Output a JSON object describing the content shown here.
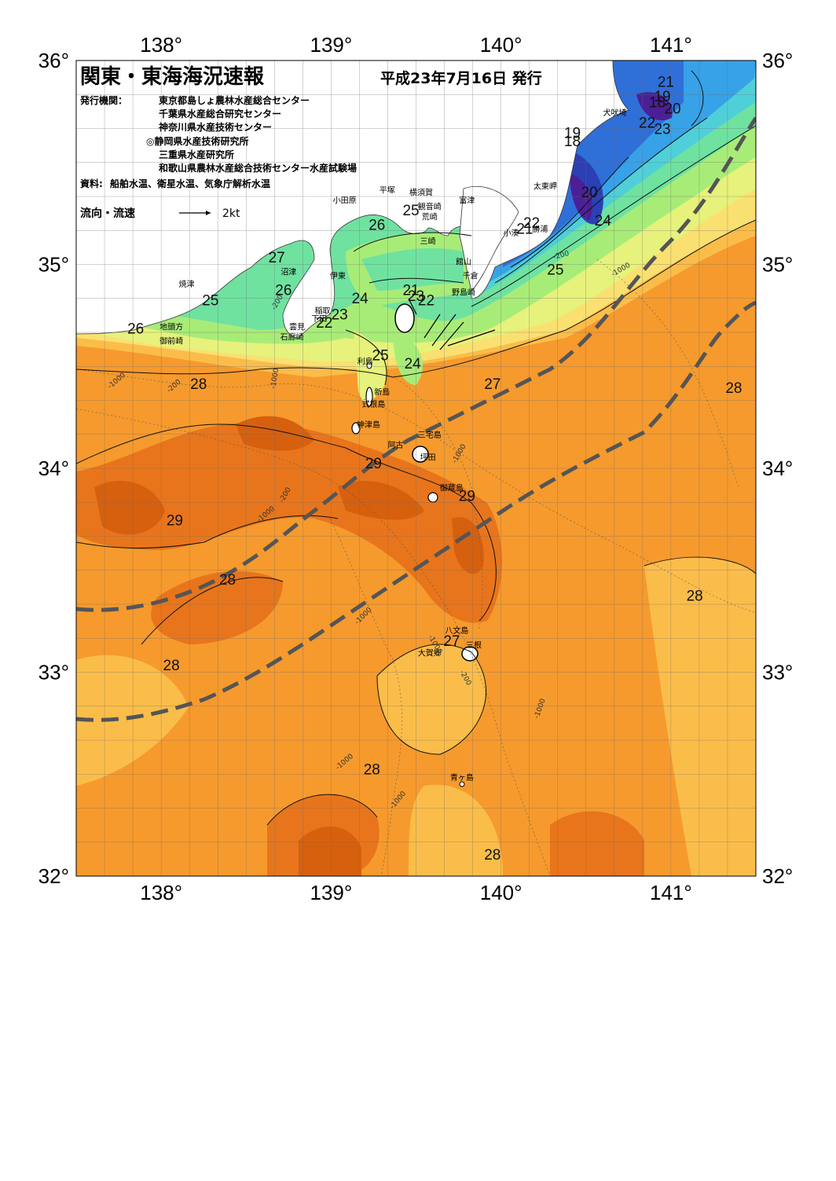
{
  "title": "関東・東海海況速報",
  "issue_date": "平成23年7月16日 発行",
  "publisher_label": "発行機関：",
  "publishers": [
    "東京都島しょ農林水産総合センター",
    "千葉県水産総合研究センター",
    "神奈川県水産技術センター",
    "◎静岡県水産技術研究所",
    "三重県水産研究所",
    "和歌山県農林水産総合技術センター水産試験場"
  ],
  "source_label": "資料:",
  "source_text": "船舶水温、衛星水温、気象庁解析水温",
  "current_legend": {
    "label": "流向・流速",
    "speed": "2kt"
  },
  "axes": {
    "top_lon": [
      "138°",
      "139°",
      "140°",
      "141°"
    ],
    "bottom_lon": [
      "138°",
      "139°",
      "140°",
      "141°"
    ],
    "left_lat": [
      "36°",
      "35°",
      "34°",
      "33°",
      "32°"
    ],
    "right_lat": [
      "36°",
      "35°",
      "34°",
      "33°",
      "32°"
    ]
  },
  "colors": {
    "t18": "#4b2096",
    "t19": "#2c3fb4",
    "t20": "#2f6fd8",
    "t21": "#37a2e8",
    "t22": "#4fd0d9",
    "t23": "#6fe2a0",
    "t24": "#a8ec78",
    "t25": "#e6f27c",
    "t26": "#fae070",
    "t27": "#fbbd4a",
    "t28": "#f69a2d",
    "t29": "#e8751b",
    "t29b": "#d6600e",
    "land": "#ffffff",
    "kuroshio_axis": "#555555"
  },
  "isotherm_labels": [
    {
      "text": "21",
      "lon": 140.97,
      "lat": 35.87
    },
    {
      "text": "19",
      "lon": 140.95,
      "lat": 35.8
    },
    {
      "text": "18",
      "lon": 140.92,
      "lat": 35.77
    },
    {
      "text": "20",
      "lon": 141.01,
      "lat": 35.74
    },
    {
      "text": "22",
      "lon": 140.86,
      "lat": 35.67
    },
    {
      "text": "23",
      "lon": 140.95,
      "lat": 35.64
    },
    {
      "text": "19",
      "lon": 140.42,
      "lat": 35.62
    },
    {
      "text": "18",
      "lon": 140.42,
      "lat": 35.58
    },
    {
      "text": "20",
      "lon": 140.52,
      "lat": 35.33
    },
    {
      "text": "24",
      "lon": 140.6,
      "lat": 35.19
    },
    {
      "text": "22",
      "lon": 140.18,
      "lat": 35.18
    },
    {
      "text": "21",
      "lon": 140.14,
      "lat": 35.15
    },
    {
      "text": "25",
      "lon": 140.32,
      "lat": 34.95
    },
    {
      "text": "25",
      "lon": 139.47,
      "lat": 35.24
    },
    {
      "text": "26",
      "lon": 139.27,
      "lat": 35.17
    },
    {
      "text": "27",
      "lon": 138.68,
      "lat": 35.01
    },
    {
      "text": "26",
      "lon": 138.72,
      "lat": 34.85
    },
    {
      "text": "25",
      "lon": 138.29,
      "lat": 34.8
    },
    {
      "text": "26",
      "lon": 137.85,
      "lat": 34.66
    },
    {
      "text": "24",
      "lon": 139.17,
      "lat": 34.81
    },
    {
      "text": "23",
      "lon": 139.05,
      "lat": 34.73
    },
    {
      "text": "22",
      "lon": 138.96,
      "lat": 34.69
    },
    {
      "text": "21",
      "lon": 139.47,
      "lat": 34.85
    },
    {
      "text": "23",
      "lon": 139.5,
      "lat": 34.82
    },
    {
      "text": "22",
      "lon": 139.56,
      "lat": 34.8
    },
    {
      "text": "25",
      "lon": 139.29,
      "lat": 34.53
    },
    {
      "text": "24",
      "lon": 139.48,
      "lat": 34.49
    },
    {
      "text": "27",
      "lon": 139.95,
      "lat": 34.39
    },
    {
      "text": "28",
      "lon": 138.22,
      "lat": 34.39
    },
    {
      "text": "28",
      "lon": 141.37,
      "lat": 34.37
    },
    {
      "text": "29",
      "lon": 139.25,
      "lat": 34.0
    },
    {
      "text": "29",
      "lon": 139.8,
      "lat": 33.84
    },
    {
      "text": "29",
      "lon": 138.08,
      "lat": 33.72
    },
    {
      "text": "28",
      "lon": 138.39,
      "lat": 33.43
    },
    {
      "text": "28",
      "lon": 141.14,
      "lat": 33.35
    },
    {
      "text": "27",
      "lon": 139.71,
      "lat": 33.13
    },
    {
      "text": "28",
      "lon": 138.06,
      "lat": 33.01
    },
    {
      "text": "28",
      "lon": 139.24,
      "lat": 32.5
    },
    {
      "text": "28",
      "lon": 139.95,
      "lat": 32.08
    }
  ],
  "place_labels": [
    {
      "text": "犬吠埼",
      "lon": 140.67,
      "lat": 35.73
    },
    {
      "text": "太東岬",
      "lon": 140.26,
      "lat": 35.37
    },
    {
      "text": "勝浦",
      "lon": 140.23,
      "lat": 35.16
    },
    {
      "text": "小湊",
      "lon": 140.06,
      "lat": 35.14
    },
    {
      "text": "富津",
      "lon": 139.8,
      "lat": 35.3
    },
    {
      "text": "横須賀",
      "lon": 139.53,
      "lat": 35.34
    },
    {
      "text": "観音崎",
      "lon": 139.58,
      "lat": 35.27
    },
    {
      "text": "荒崎",
      "lon": 139.58,
      "lat": 35.22
    },
    {
      "text": "三崎",
      "lon": 139.57,
      "lat": 35.1
    },
    {
      "text": "平塚",
      "lon": 139.33,
      "lat": 35.35
    },
    {
      "text": "小田原",
      "lon": 139.08,
      "lat": 35.3
    },
    {
      "text": "館山",
      "lon": 139.78,
      "lat": 35.0
    },
    {
      "text": "千倉",
      "lon": 139.82,
      "lat": 34.93
    },
    {
      "text": "野島崎",
      "lon": 139.78,
      "lat": 34.85
    },
    {
      "text": "沼津",
      "lon": 138.75,
      "lat": 34.95
    },
    {
      "text": "伊東",
      "lon": 139.04,
      "lat": 34.93
    },
    {
      "text": "焼津",
      "lon": 138.15,
      "lat": 34.89
    },
    {
      "text": "稲取",
      "lon": 138.95,
      "lat": 34.76
    },
    {
      "text": "下田",
      "lon": 138.93,
      "lat": 34.72
    },
    {
      "text": "雲見",
      "lon": 138.8,
      "lat": 34.68
    },
    {
      "text": "石廊崎",
      "lon": 138.77,
      "lat": 34.63
    },
    {
      "text": "地頭方",
      "lon": 138.06,
      "lat": 34.68
    },
    {
      "text": "御前崎",
      "lon": 138.06,
      "lat": 34.61
    },
    {
      "text": "利島",
      "lon": 139.2,
      "lat": 34.51
    },
    {
      "text": "新島",
      "lon": 139.3,
      "lat": 34.36
    },
    {
      "text": "式根島",
      "lon": 139.25,
      "lat": 34.3
    },
    {
      "text": "神津島",
      "lon": 139.22,
      "lat": 34.2
    },
    {
      "text": "三宅島",
      "lon": 139.58,
      "lat": 34.15
    },
    {
      "text": "御蔵島",
      "lon": 139.71,
      "lat": 33.89
    },
    {
      "text": "坪田",
      "lon": 139.57,
      "lat": 34.04
    },
    {
      "text": "阿古",
      "lon": 139.38,
      "lat": 34.1
    },
    {
      "text": "八文島",
      "lon": 139.74,
      "lat": 33.19
    },
    {
      "text": "三根",
      "lon": 139.84,
      "lat": 33.12
    },
    {
      "text": "大賀郷",
      "lon": 139.58,
      "lat": 33.08
    },
    {
      "text": "青ヶ島",
      "lon": 139.77,
      "lat": 32.47
    }
  ]
}
